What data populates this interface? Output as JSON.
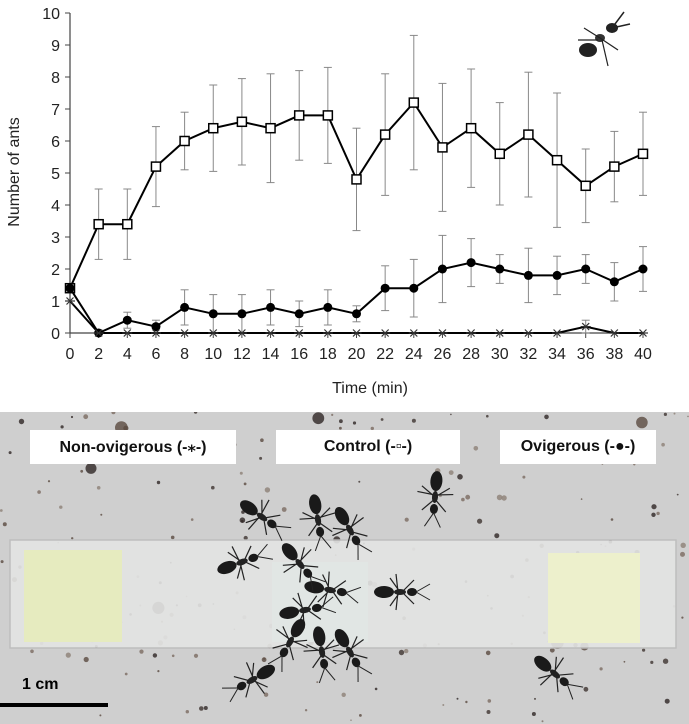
{
  "chart_data": {
    "type": "line",
    "xlabel": "Time (min)",
    "ylabel": "Number of ants",
    "xlim": [
      0,
      40
    ],
    "ylim": [
      0,
      10
    ],
    "x_ticks": [
      0,
      2,
      4,
      6,
      8,
      10,
      12,
      14,
      16,
      18,
      20,
      22,
      24,
      26,
      28,
      30,
      32,
      34,
      36,
      38,
      40
    ],
    "y_ticks": [
      0,
      1,
      2,
      3,
      4,
      5,
      6,
      7,
      8,
      9,
      10
    ],
    "grid": false,
    "x": [
      0,
      2,
      4,
      6,
      8,
      10,
      12,
      14,
      16,
      18,
      20,
      22,
      24,
      26,
      28,
      30,
      32,
      34,
      36,
      38,
      40
    ],
    "series": [
      {
        "marker": "open-square",
        "color": "#000000",
        "values": [
          1.4,
          3.4,
          3.4,
          5.2,
          6.0,
          6.4,
          6.6,
          6.4,
          6.8,
          6.8,
          4.8,
          6.2,
          7.2,
          5.8,
          6.4,
          5.6,
          6.2,
          5.4,
          4.6,
          5.2,
          5.6
        ],
        "error": [
          0.0,
          1.1,
          1.1,
          1.25,
          0.9,
          1.35,
          1.35,
          1.7,
          1.4,
          1.5,
          1.6,
          1.9,
          2.1,
          2.0,
          1.85,
          1.6,
          1.95,
          2.1,
          1.15,
          1.1,
          1.3
        ]
      },
      {
        "marker": "filled-circle",
        "color": "#000000",
        "values": [
          1.4,
          0.0,
          0.4,
          0.2,
          0.8,
          0.6,
          0.6,
          0.8,
          0.6,
          0.8,
          0.6,
          1.4,
          1.4,
          2.0,
          2.2,
          2.0,
          1.8,
          1.8,
          2.0,
          1.6,
          2.0
        ],
        "error": [
          0.0,
          0.0,
          0.25,
          0.2,
          0.55,
          0.6,
          0.6,
          0.55,
          0.4,
          0.55,
          0.25,
          0.7,
          0.9,
          1.05,
          0.75,
          0.45,
          0.85,
          0.6,
          0.45,
          0.6,
          0.7
        ]
      },
      {
        "marker": "asterisk",
        "color": "#000000",
        "values": [
          1.0,
          0.0,
          0.0,
          0.0,
          0.0,
          0.0,
          0.0,
          0.0,
          0.0,
          0.0,
          0.0,
          0.0,
          0.0,
          0.0,
          0.0,
          0.0,
          0.0,
          0.0,
          0.2,
          0.0,
          0.0
        ],
        "error": [
          0.0,
          0.0,
          0.0,
          0.0,
          0.0,
          0.0,
          0.0,
          0.0,
          0.0,
          0.0,
          0.0,
          0.0,
          0.0,
          0.0,
          0.0,
          0.0,
          0.0,
          0.0,
          0.2,
          0.0,
          0.0
        ]
      }
    ]
  },
  "photo": {
    "legend_non_ovigerous": "Non-ovigerous (-⁎-)",
    "legend_control": "Control (-▫-)",
    "legend_ovigerous": "Ovigerous (-●-)",
    "scale_label": "1 cm"
  },
  "colors": {
    "photo_background": "#cfcfcf",
    "slide": "#e6e6e6",
    "filter_paper": "#e9ecc4",
    "ant": "#1a1a1a"
  }
}
